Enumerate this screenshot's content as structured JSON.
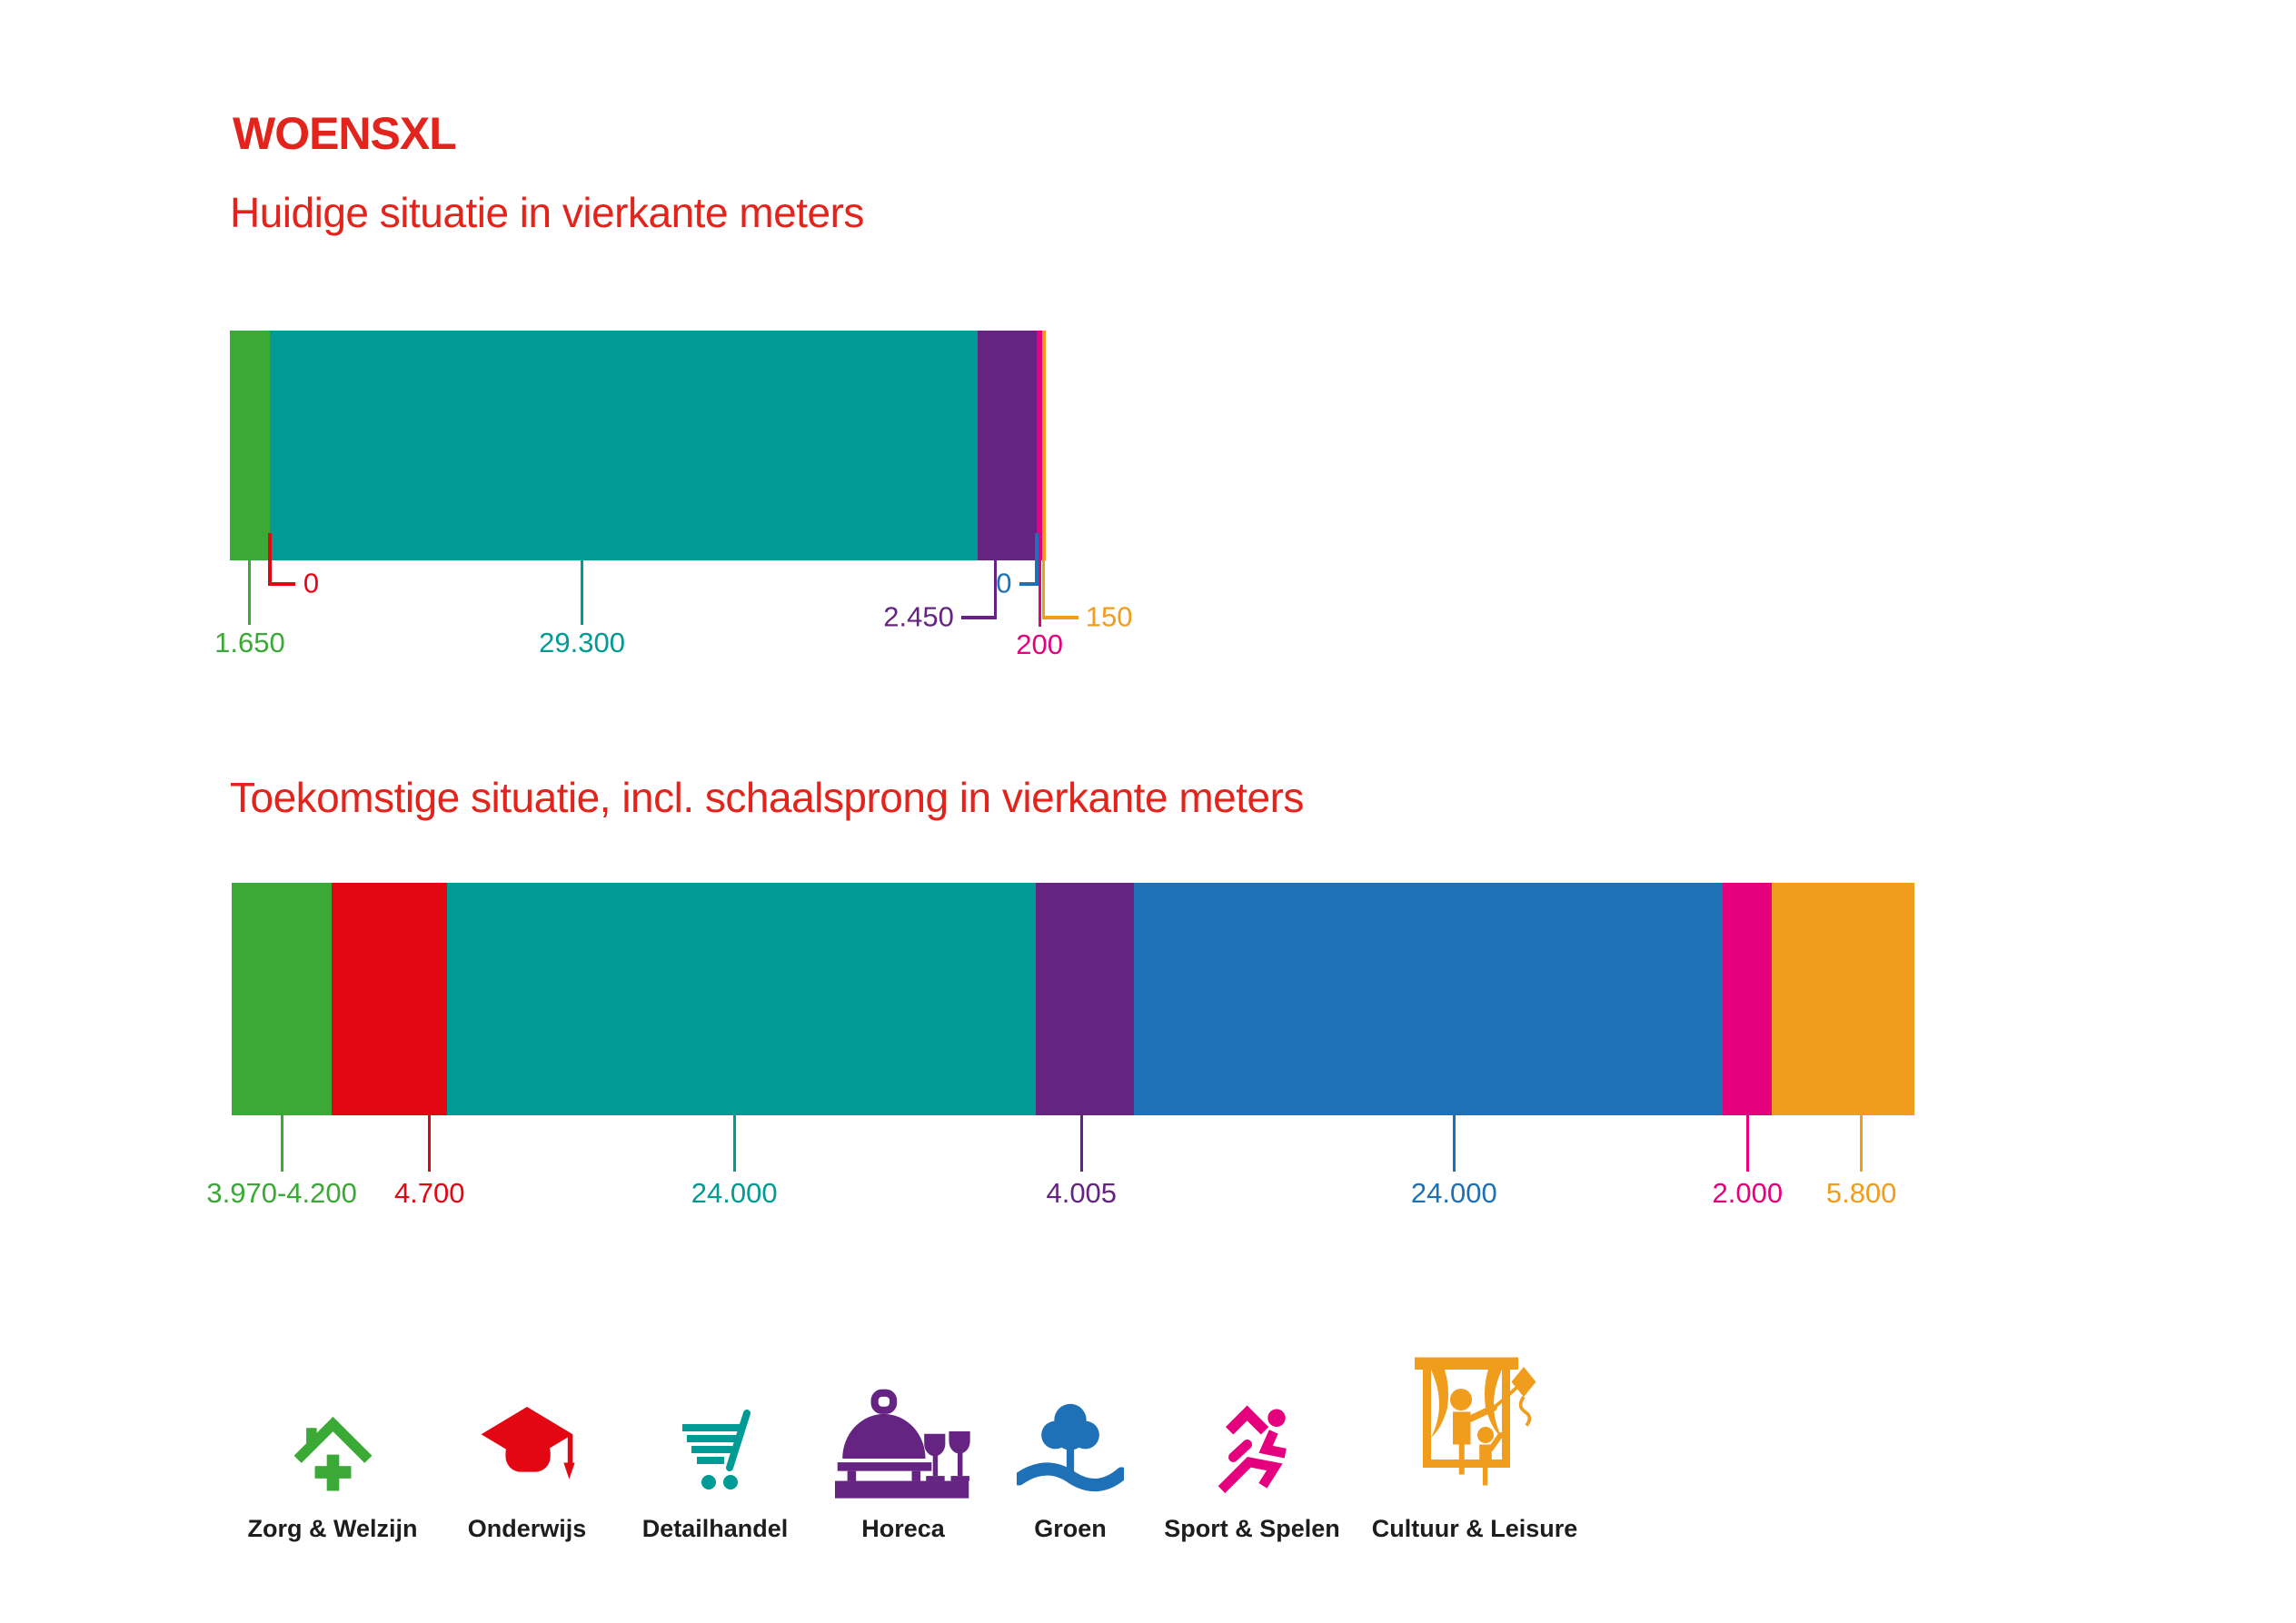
{
  "header": {
    "title": "WOENSXL"
  },
  "palette": {
    "green": "#3aa935",
    "red": "#e30613",
    "teal": "#009b94",
    "purple": "#662482",
    "blue": "#1e70b7",
    "pink": "#e5007d",
    "orange": "#f09c1d",
    "title_red": "#e2241c",
    "text_dark": "#1d1d1b"
  },
  "categories": [
    {
      "id": "zorg",
      "label": "Zorg & Welzijn",
      "color": "green",
      "icon": "house-cross-icon"
    },
    {
      "id": "onderwijs",
      "label": "Onderwijs",
      "color": "red",
      "icon": "graduation-cap-icon"
    },
    {
      "id": "detailhandel",
      "label": "Detailhandel",
      "color": "teal",
      "icon": "shopping-cart-icon"
    },
    {
      "id": "horeca",
      "label": "Horeca",
      "color": "purple",
      "icon": "cloche-icon"
    },
    {
      "id": "groen",
      "label": "Groen",
      "color": "blue",
      "icon": "tree-wave-icon"
    },
    {
      "id": "sport",
      "label": "Sport & Spelen",
      "color": "pink",
      "icon": "runner-icon"
    },
    {
      "id": "cultuur",
      "label": "Cultuur & Leisure",
      "color": "orange",
      "icon": "theater-icon"
    }
  ],
  "chart_data": [
    {
      "type": "bar",
      "variant": "stacked-horizontal",
      "title": "Huidige situatie in vierkante meters",
      "unit": "vierkante meters",
      "legend_position": "bottom",
      "categories": [
        "Zorg & Welzijn",
        "Onderwijs",
        "Detailhandel",
        "Horeca",
        "Groen",
        "Sport & Spelen",
        "Cultuur & Leisure"
      ],
      "values": [
        1650,
        0,
        29300,
        2450,
        0,
        200,
        150
      ],
      "value_labels": [
        "1.650",
        "0",
        "29.300",
        "2.450",
        "0",
        "200",
        "150"
      ]
    },
    {
      "type": "bar",
      "variant": "stacked-horizontal",
      "title": "Toekomstige situatie, incl. schaalsprong in vierkante meters",
      "unit": "vierkante meters",
      "legend_position": "bottom",
      "categories": [
        "Zorg & Welzijn",
        "Onderwijs",
        "Detailhandel",
        "Horeca",
        "Groen",
        "Sport & Spelen",
        "Cultuur & Leisure"
      ],
      "values": [
        4085,
        4700,
        24000,
        4005,
        24000,
        2000,
        5800
      ],
      "value_labels": [
        "3.970-4.200",
        "4.700",
        "24.000",
        "4.005",
        "24.000",
        "2.000",
        "5.800"
      ]
    }
  ]
}
